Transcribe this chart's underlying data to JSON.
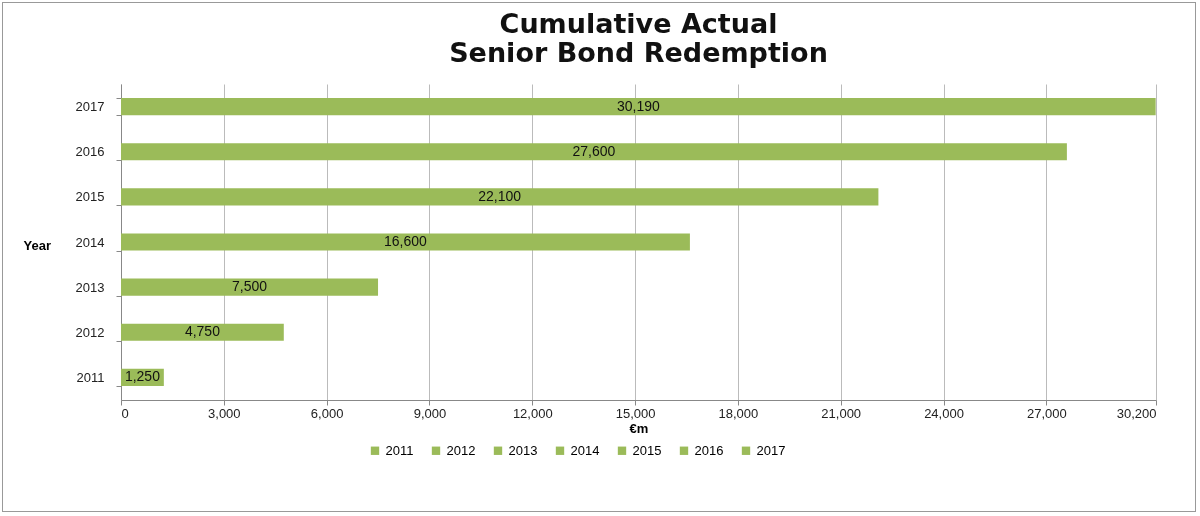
{
  "chart_data": {
    "type": "bar",
    "orientation": "horizontal",
    "title": "Cumulative Actual\nSenior Bond Redemption",
    "xlabel": "€m",
    "ylabel": "Year",
    "categories": [
      "2017",
      "2016",
      "2015",
      "2014",
      "2013",
      "2012",
      "2011"
    ],
    "series": [
      {
        "name": "2011",
        "color": "#9bbb59",
        "values": [
          null,
          null,
          null,
          null,
          null,
          null,
          1250
        ],
        "value_labels": [
          null,
          null,
          null,
          null,
          null,
          null,
          "1,250"
        ]
      },
      {
        "name": "2012",
        "color": "#9bbb59",
        "values": [
          null,
          null,
          null,
          null,
          null,
          4750,
          null
        ],
        "value_labels": [
          null,
          null,
          null,
          null,
          null,
          "4,750",
          null
        ]
      },
      {
        "name": "2013",
        "color": "#9bbb59",
        "values": [
          null,
          null,
          null,
          null,
          7500,
          null,
          null
        ],
        "value_labels": [
          null,
          null,
          null,
          null,
          "7,500",
          null,
          null
        ]
      },
      {
        "name": "2014",
        "color": "#9bbb59",
        "values": [
          null,
          null,
          null,
          16600,
          null,
          null,
          null
        ],
        "value_labels": [
          null,
          null,
          null,
          "16,600",
          null,
          null,
          null
        ]
      },
      {
        "name": "2015",
        "color": "#9bbb59",
        "values": [
          null,
          null,
          22100,
          null,
          null,
          null,
          null
        ],
        "value_labels": [
          null,
          null,
          "22,100",
          null,
          null,
          null,
          null
        ]
      },
      {
        "name": "2016",
        "color": "#9bbb59",
        "values": [
          null,
          27600,
          null,
          null,
          null,
          null,
          null
        ],
        "value_labels": [
          null,
          "27,600",
          null,
          null,
          null,
          null,
          null
        ]
      },
      {
        "name": "2017",
        "color": "#9bbb59",
        "values": [
          30190,
          null,
          null,
          null,
          null,
          null,
          null
        ],
        "value_labels": [
          "30,190",
          null,
          null,
          null,
          null,
          null,
          null
        ]
      }
    ],
    "xlim": [
      0,
      30200
    ],
    "xticks": [
      0,
      {
        "value": 3000,
        "label": "3,000"
      },
      {
        "value": 6000,
        "label": "6,000"
      },
      {
        "value": 9000,
        "label": "9,000"
      },
      {
        "value": 12000,
        "label": "12,000"
      },
      {
        "value": 15000,
        "label": "15,000"
      },
      {
        "value": 18000,
        "label": "18,000"
      },
      {
        "value": 21000,
        "label": "21,000"
      },
      {
        "value": 24000,
        "label": "24,000"
      },
      {
        "value": 27000,
        "label": "27,000"
      },
      {
        "value": 30200,
        "label": "30,200"
      }
    ],
    "grid": "x",
    "legend": "bottom"
  }
}
